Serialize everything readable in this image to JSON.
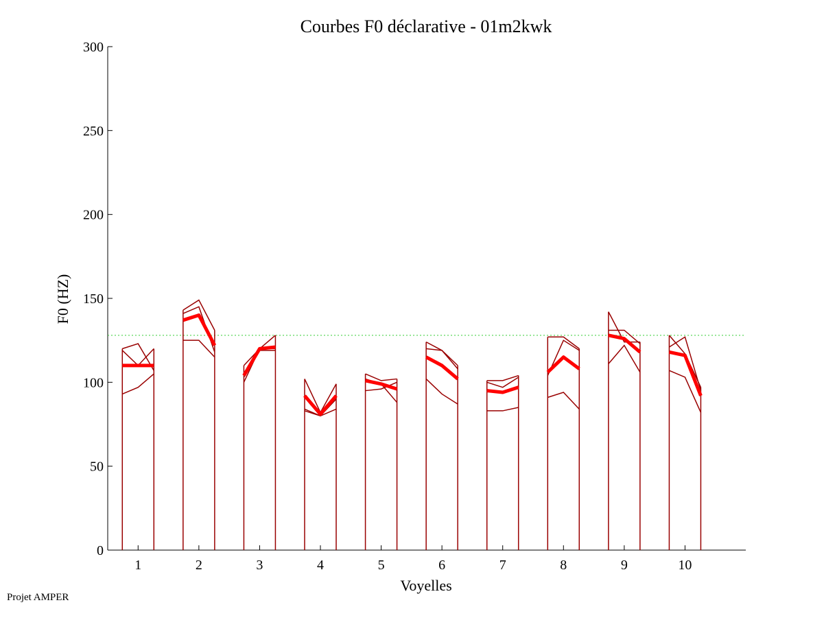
{
  "footer_text": "Projet AMPER",
  "chart_data": {
    "type": "line",
    "title": "Courbes F0 déclarative - 01m2kwk",
    "xlabel": "Voyelles",
    "ylabel": "F0 (HZ)",
    "ylim": [
      0,
      300
    ],
    "yticks": [
      0,
      50,
      100,
      150,
      200,
      250,
      300
    ],
    "categories": [
      "1",
      "2",
      "3",
      "4",
      "5",
      "6",
      "7",
      "8",
      "9",
      "10"
    ],
    "grid": false,
    "reference_line": {
      "y": 128,
      "color": "#33cc33",
      "style": "dotted"
    },
    "colors": {
      "repetitions": "#990000",
      "mean": "#ff0000"
    },
    "vowels": [
      {
        "label": "1",
        "reps": [
          [
            120,
            123,
            107
          ],
          [
            119,
            110,
            120
          ],
          [
            93,
            97,
            105
          ]
        ],
        "mean": [
          110,
          110,
          110
        ]
      },
      {
        "label": "2",
        "reps": [
          [
            143,
            149,
            131
          ],
          [
            141,
            145,
            118
          ],
          [
            125,
            125,
            115
          ]
        ],
        "mean": [
          137,
          140,
          122
        ]
      },
      {
        "label": "3",
        "reps": [
          [
            110,
            120,
            128
          ],
          [
            100,
            120,
            120
          ],
          [
            103,
            119,
            119
          ]
        ],
        "mean": [
          104,
          120,
          121
        ]
      },
      {
        "label": "4",
        "reps": [
          [
            102,
            82,
            99
          ],
          [
            84,
            80,
            90
          ],
          [
            83,
            80,
            84
          ]
        ],
        "mean": [
          92,
          81,
          92
        ]
      },
      {
        "label": "5",
        "reps": [
          [
            105,
            101,
            102
          ],
          [
            102,
            99,
            88
          ],
          [
            95,
            96,
            100
          ]
        ],
        "mean": [
          101,
          99,
          96
        ]
      },
      {
        "label": "6",
        "reps": [
          [
            124,
            119,
            110
          ],
          [
            120,
            119,
            108
          ],
          [
            102,
            93,
            87
          ]
        ],
        "mean": [
          115,
          110,
          102
        ]
      },
      {
        "label": "7",
        "reps": [
          [
            101,
            101,
            104
          ],
          [
            100,
            97,
            103
          ],
          [
            83,
            83,
            85
          ]
        ],
        "mean": [
          95,
          94,
          97
        ]
      },
      {
        "label": "8",
        "reps": [
          [
            127,
            127,
            120
          ],
          [
            104,
            125,
            119
          ],
          [
            91,
            94,
            84
          ]
        ],
        "mean": [
          106,
          115,
          108
        ]
      },
      {
        "label": "9",
        "reps": [
          [
            142,
            124,
            124
          ],
          [
            131,
            131,
            123
          ],
          [
            111,
            122,
            106
          ]
        ],
        "mean": [
          128,
          126,
          118
        ]
      },
      {
        "label": "10",
        "reps": [
          [
            128,
            117,
            97
          ],
          [
            121,
            127,
            95
          ],
          [
            107,
            103,
            82
          ]
        ],
        "mean": [
          118,
          116,
          92
        ]
      }
    ]
  }
}
